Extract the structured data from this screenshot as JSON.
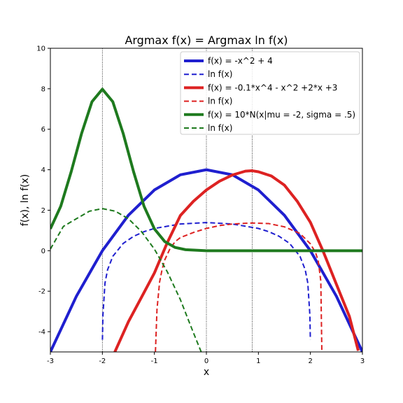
{
  "chart_data": {
    "type": "line",
    "title": "Argmax f(x) = Argmax ln f(x)",
    "xlabel": "x",
    "ylabel": "f(x), ln f(x)",
    "xlim": [
      -3,
      3
    ],
    "ylim": [
      -5,
      10
    ],
    "xticks": [
      "-3",
      "-2",
      "-1",
      "0",
      "1",
      "2",
      "3"
    ],
    "yticks": [
      "-4",
      "-2",
      "0",
      "2",
      "4",
      "6",
      "8",
      "10"
    ],
    "grid": false,
    "legend_position": "top-right",
    "vlines": [
      -2,
      0,
      0.88
    ],
    "series": [
      {
        "name": "f(x) = -x^2 + 4",
        "color": "#1f1fcf",
        "style": "solid",
        "x": [
          -3,
          -2.5,
          -2,
          -1.5,
          -1,
          -0.5,
          0,
          0.5,
          1,
          1.5,
          2,
          2.5,
          3
        ],
        "y": [
          -5,
          -2.25,
          0,
          1.75,
          3,
          3.75,
          4,
          3.75,
          3,
          1.75,
          0,
          -2.25,
          -5
        ]
      },
      {
        "name": "ln f(x)",
        "color": "#1f1fcf",
        "style": "dashed",
        "x": [
          -1.999,
          -1.99,
          -1.95,
          -1.9,
          -1.8,
          -1.6,
          -1.4,
          -1.2,
          -1,
          -0.5,
          0,
          0.5,
          1,
          1.2,
          1.4,
          1.6,
          1.8,
          1.9,
          1.95,
          1.99,
          1.999
        ],
        "y": [
          -4.4,
          -3.2,
          -1.6,
          -0.94,
          -0.28,
          0.36,
          0.71,
          0.94,
          1.1,
          1.32,
          1.39,
          1.32,
          1.1,
          0.94,
          0.71,
          0.36,
          -0.28,
          -0.94,
          -1.6,
          -3.2,
          -4.4
        ]
      },
      {
        "name": "f(x) = -0.1*x^4 - x^2 +2*x +3",
        "color": "#dd2222",
        "style": "solid",
        "x": [
          -2,
          -1.75,
          -1.5,
          -1.25,
          -1,
          -0.75,
          -0.5,
          -0.25,
          0,
          0.25,
          0.5,
          0.75,
          0.88,
          1,
          1.25,
          1.5,
          1.75,
          2,
          2.25,
          2.5,
          2.75,
          2.92
        ],
        "y": [
          -6.6,
          -4.94,
          -3.51,
          -2.31,
          -1.1,
          0.41,
          1.74,
          2.44,
          3,
          3.43,
          3.74,
          3.93,
          3.95,
          3.9,
          3.69,
          3.24,
          2.43,
          1.4,
          -0.06,
          -1.66,
          -3.25,
          -4.94
        ]
      },
      {
        "name": "ln f(x)",
        "color": "#dd2222",
        "style": "dashed",
        "x": [
          -0.98,
          -0.95,
          -0.9,
          -0.85,
          -0.8,
          -0.7,
          -0.6,
          -0.5,
          -0.25,
          0,
          0.25,
          0.5,
          0.88,
          1.2,
          1.5,
          1.8,
          2,
          2.1,
          2.15,
          2.2,
          2.22
        ],
        "y": [
          -5,
          -2.9,
          -1.55,
          -0.9,
          -0.45,
          0.1,
          0.45,
          0.65,
          0.9,
          1.1,
          1.24,
          1.32,
          1.37,
          1.34,
          1.18,
          0.85,
          0.34,
          -0.1,
          -0.5,
          -1.5,
          -5
        ]
      },
      {
        "name": "f(x) = 10*N(x|mu = -2, sigma = .5)",
        "color": "#1e7a1e",
        "style": "solid",
        "x": [
          -3,
          -2.8,
          -2.6,
          -2.4,
          -2.2,
          -2,
          -1.8,
          -1.6,
          -1.4,
          -1.2,
          -1,
          -0.8,
          -0.6,
          -0.4,
          0,
          1,
          2,
          3
        ],
        "y": [
          1.08,
          2.2,
          3.9,
          5.79,
          7.36,
          7.98,
          7.36,
          5.79,
          3.9,
          2.2,
          1.08,
          0.45,
          0.16,
          0.05,
          0,
          0,
          0,
          0
        ]
      },
      {
        "name": "ln f(x)",
        "color": "#1e7a1e",
        "style": "dashed",
        "x": [
          -3,
          -2.75,
          -2.5,
          -2.25,
          -2,
          -1.75,
          -1.5,
          -1.25,
          -1,
          -0.75,
          -0.5,
          -0.25,
          -0.1
        ],
        "y": [
          0.08,
          1.2,
          1.58,
          1.95,
          2.08,
          1.95,
          1.58,
          0.95,
          0.08,
          -1.05,
          -2.42,
          -4.05,
          -5
        ]
      }
    ]
  }
}
